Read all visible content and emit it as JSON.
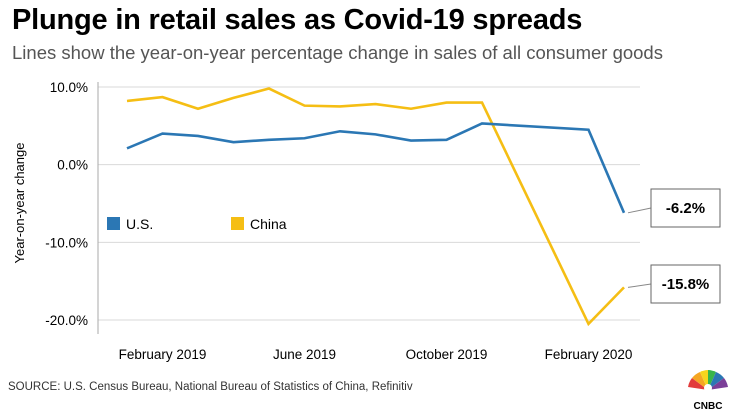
{
  "title": "Plunge in retail sales as Covid-19 spreads",
  "subtitle": "Lines show the year-on-year percentage change in sales of all consumer goods",
  "source": "SOURCE: U.S. Census Bureau, National Bureau of Statistics of China, Refinitiv",
  "logo_text": "CNBC",
  "colors": {
    "us": "#2b77b4",
    "china": "#f5be14",
    "grid": "#d9d9d9",
    "axis": "#aaaaaa",
    "leader": "#888888"
  },
  "chart_data": {
    "type": "line",
    "ylabel": "Year-on-year change",
    "xlabel": "",
    "ylim": [
      -20,
      10
    ],
    "yticks": [
      10,
      0,
      -10,
      -20
    ],
    "ytick_labels": [
      "10.0%",
      "0.0%",
      "-10.0%",
      "-20.0%"
    ],
    "grid": "horizontal",
    "legend_position": "left-middle",
    "x": [
      "2019-01",
      "2019-02",
      "2019-03",
      "2019-04",
      "2019-05",
      "2019-06",
      "2019-07",
      "2019-08",
      "2019-09",
      "2019-10",
      "2019-11",
      "2019-12",
      "2020-01",
      "2020-02",
      "2020-03"
    ],
    "x_ticks": [
      "2019-02",
      "2019-06",
      "2019-10",
      "2020-02"
    ],
    "x_tick_labels": [
      "February 2019",
      "June 2019",
      "October 2019",
      "February 2020"
    ],
    "series": [
      {
        "name": "U.S.",
        "color_key": "us",
        "values": [
          2.1,
          4.0,
          3.7,
          2.9,
          3.2,
          3.4,
          4.3,
          3.9,
          3.1,
          3.2,
          5.3,
          null,
          null,
          4.5,
          -6.2
        ],
        "end_label": "-6.2%"
      },
      {
        "name": "China",
        "color_key": "china",
        "values": [
          8.2,
          8.7,
          7.2,
          8.6,
          9.8,
          7.6,
          7.5,
          7.8,
          7.2,
          8.0,
          8.0,
          null,
          null,
          -20.5,
          -15.8
        ],
        "end_label": "-15.8%"
      }
    ]
  }
}
